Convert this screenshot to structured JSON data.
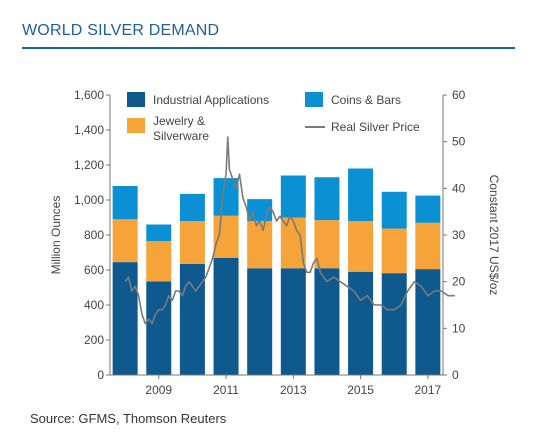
{
  "title": "WORLD SILVER DEMAND",
  "source": "Source: GFMS, Thomson Reuters",
  "chart_data": {
    "type": "bar",
    "stacked": true,
    "categories": [
      "2008",
      "2009",
      "2010",
      "2011",
      "2012",
      "2013",
      "2014",
      "2015",
      "2016",
      "2017"
    ],
    "series": [
      {
        "name": "Industrial Applications",
        "color": "#0e5a8f",
        "values": [
          645,
          535,
          635,
          670,
          610,
          610,
          610,
          590,
          582,
          605
        ]
      },
      {
        "name": "Jewelry & Silverware",
        "color": "#f6a43a",
        "values": [
          245,
          230,
          245,
          240,
          270,
          290,
          275,
          290,
          255,
          265
        ]
      },
      {
        "name": "Coins & Bars",
        "color": "#0b90d3",
        "values": [
          190,
          95,
          155,
          215,
          125,
          240,
          245,
          300,
          210,
          155
        ]
      }
    ],
    "line_series": {
      "name": "Real Silver Price",
      "color": "#7a7a7a",
      "axis": "right",
      "x": [
        2008.0,
        2008.1,
        2008.2,
        2008.3,
        2008.4,
        2008.5,
        2008.6,
        2008.7,
        2008.8,
        2008.9,
        2009.0,
        2009.1,
        2009.2,
        2009.3,
        2009.4,
        2009.5,
        2009.6,
        2009.7,
        2009.8,
        2009.9,
        2010.0,
        2010.1,
        2010.2,
        2010.3,
        2010.4,
        2010.5,
        2010.6,
        2010.7,
        2010.8,
        2010.9,
        2010.95,
        2011.0,
        2011.05,
        2011.1,
        2011.2,
        2011.3,
        2011.4,
        2011.5,
        2011.6,
        2011.7,
        2011.8,
        2011.9,
        2012.0,
        2012.1,
        2012.2,
        2012.3,
        2012.4,
        2012.5,
        2012.6,
        2012.7,
        2012.8,
        2012.9,
        2013.0,
        2013.1,
        2013.2,
        2013.3,
        2013.4,
        2013.5,
        2013.6,
        2013.7,
        2013.8,
        2013.9,
        2014.0,
        2014.2,
        2014.4,
        2014.6,
        2014.8,
        2015.0,
        2015.2,
        2015.4,
        2015.6,
        2015.8,
        2016.0,
        2016.2,
        2016.4,
        2016.6,
        2016.8,
        2017.0,
        2017.2,
        2017.4,
        2017.6,
        2017.8
      ],
      "values": [
        20,
        21,
        18,
        19,
        17,
        13,
        11,
        12,
        11,
        13,
        14,
        14,
        15,
        17,
        16,
        18,
        18,
        17,
        19,
        20,
        19,
        18,
        19,
        20,
        21,
        23,
        25,
        28,
        30,
        38,
        41,
        43,
        51,
        44,
        42,
        40,
        43,
        38,
        36,
        33,
        35,
        32,
        33,
        31,
        34,
        36,
        35,
        33,
        34,
        33,
        32,
        34,
        33,
        31,
        30,
        24,
        22,
        22,
        24,
        25,
        22,
        21,
        20,
        21,
        20,
        19,
        18,
        16,
        17,
        15,
        15,
        14,
        14,
        15,
        18,
        20,
        19,
        17,
        18,
        18,
        17,
        17
      ]
    },
    "y_left": {
      "label": "Million Ounces",
      "ticks": [
        "0",
        "200",
        "400",
        "600",
        "800",
        "1,000",
        "1,200",
        "1,400",
        "1,600"
      ],
      "ylim": [
        0,
        1600
      ]
    },
    "y_right": {
      "label": "Constant 2017 US$/oz",
      "ticks": [
        "0",
        "10",
        "20",
        "30",
        "40",
        "50",
        "60"
      ],
      "ylim": [
        0,
        60
      ]
    },
    "x_tick_labels": [
      "2009",
      "2011",
      "2013",
      "2015",
      "2017"
    ],
    "x_tick_values": [
      2009,
      2011,
      2013,
      2015,
      2017
    ],
    "grid": false,
    "legend_position": "top-inside"
  }
}
